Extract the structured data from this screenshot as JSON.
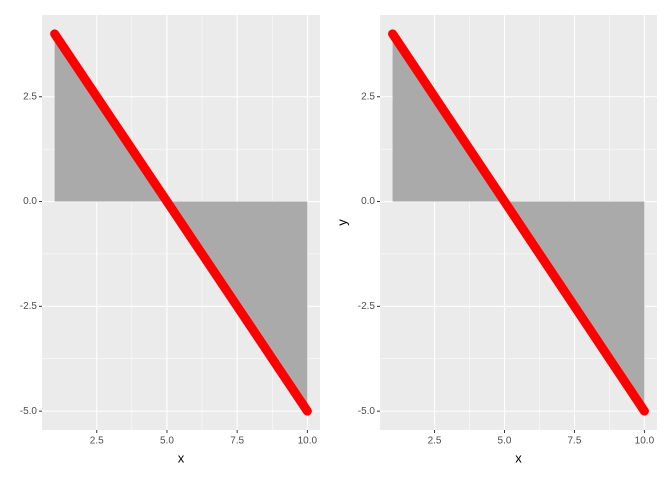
{
  "chart_data": [
    {
      "type": "area",
      "xlabel": "x",
      "x": [
        1,
        2,
        3,
        4,
        5,
        6,
        7,
        8,
        9,
        10
      ],
      "values": [
        4,
        3,
        2,
        1,
        0,
        -1,
        -2,
        -3,
        -4,
        -5
      ],
      "color": "#ff0000",
      "area_color": "#aaaaaa",
      "xlim": [
        0.55,
        10.45
      ],
      "ylim": [
        -5.45,
        4.45
      ],
      "xticks": [
        2.5,
        {
          "value": 5,
          "label": "5.0"
        },
        7.5,
        {
          "value": 10,
          "label": "10.0"
        }
      ],
      "yticks": [
        {
          "value": -5,
          "label": "-5.0"
        },
        -2.5,
        {
          "value": 0,
          "label": "0.0"
        },
        2.5
      ],
      "grid": true
    },
    {
      "type": "area",
      "xlabel": "x",
      "ylabel": "y",
      "x": [
        1,
        2,
        3,
        4,
        5,
        6,
        7,
        8,
        9,
        10
      ],
      "values": [
        4,
        3,
        2,
        1,
        0,
        -1,
        -2,
        -3,
        -4,
        -5
      ],
      "color": "#ff0000",
      "area_color": "#aaaaaa",
      "xlim": [
        0.55,
        10.45
      ],
      "ylim": [
        -5.45,
        4.45
      ],
      "xticks": [
        2.5,
        {
          "value": 5,
          "label": "5.0"
        },
        7.5,
        {
          "value": 10,
          "label": "10.0"
        }
      ],
      "yticks": [
        {
          "value": -5,
          "label": "-5.0"
        },
        -2.5,
        {
          "value": 0,
          "label": "0.0"
        },
        2.5
      ],
      "grid": true
    }
  ]
}
